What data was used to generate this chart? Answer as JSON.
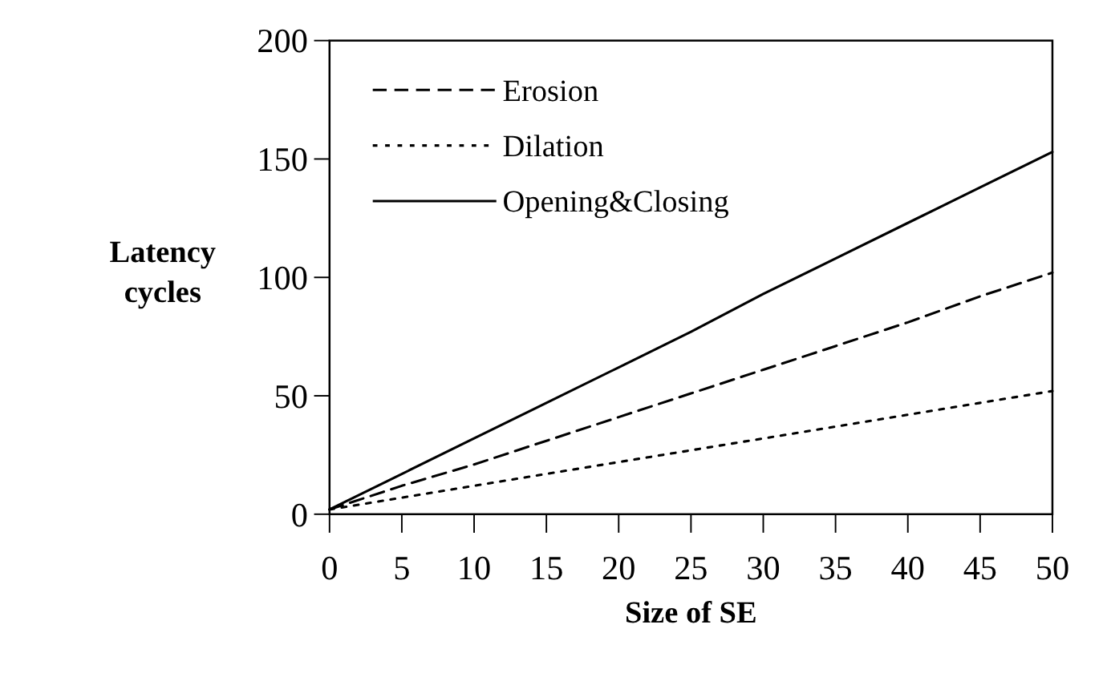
{
  "chart_data": {
    "type": "line",
    "xlabel": "Size of SE",
    "ylabel": "Latency cycles",
    "xlim": [
      0,
      50
    ],
    "xticks": [
      0,
      5,
      10,
      15,
      20,
      25,
      30,
      35,
      40,
      45,
      50
    ],
    "ylim": [
      0,
      200
    ],
    "yticks": [
      0,
      50,
      100,
      150,
      200
    ],
    "x": [
      0,
      5,
      10,
      15,
      20,
      25,
      30,
      35,
      40,
      45,
      50
    ],
    "legend": "top left",
    "grid": false,
    "marker": "none",
    "series": [
      {
        "name": "Erosion",
        "color": "#000000",
        "line_style": "dashed",
        "values": [
          2,
          12,
          21,
          31,
          41,
          51,
          61,
          71,
          81,
          92,
          102
        ]
      },
      {
        "name": "Dilation",
        "color": "#000000",
        "line_style": "dotted",
        "values": [
          2,
          7,
          12,
          17,
          22,
          27,
          32,
          37,
          42,
          47,
          52
        ]
      },
      {
        "name": "Opening&Closing",
        "color": "#000000",
        "line_style": "solid",
        "values": [
          2,
          17,
          32,
          47,
          62,
          77,
          93,
          108,
          123,
          138,
          153
        ]
      }
    ]
  }
}
